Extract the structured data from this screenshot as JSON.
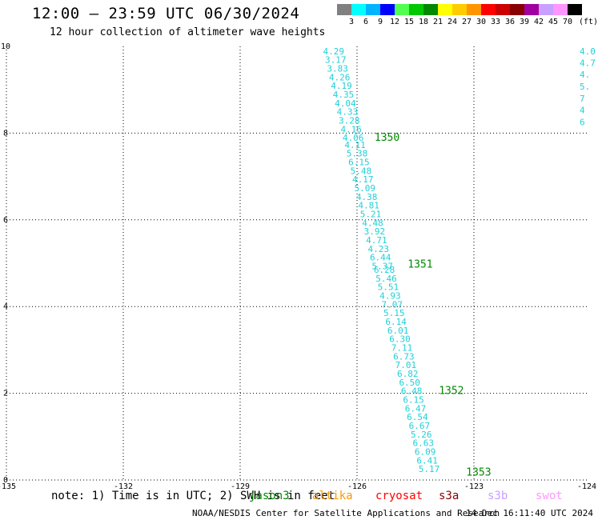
{
  "header": {
    "title": "12:00 – 23:59 UTC 06/30/2024",
    "subtitle": "12 hour collection of altimeter wave heights"
  },
  "colorbar": {
    "unit": "(ft)",
    "boxes": [
      {
        "color": "#808080",
        "label": "3"
      },
      {
        "color": "#00ffff",
        "label": "6"
      },
      {
        "color": "#00b4ff",
        "label": "9"
      },
      {
        "color": "#0000ff",
        "label": "12"
      },
      {
        "color": "#50ff50",
        "label": "15"
      },
      {
        "color": "#00c800",
        "label": "18"
      },
      {
        "color": "#008800",
        "label": "21"
      },
      {
        "color": "#ffff00",
        "label": "24"
      },
      {
        "color": "#ffcc00",
        "label": "27"
      },
      {
        "color": "#ff9600",
        "label": "30"
      },
      {
        "color": "#ff0000",
        "label": "33"
      },
      {
        "color": "#cc0000",
        "label": "36"
      },
      {
        "color": "#880000",
        "label": "39"
      },
      {
        "color": "#a000a0",
        "label": "42"
      },
      {
        "color": "#c8a0ff",
        "label": "45"
      },
      {
        "color": "#ff96ff",
        "label": "70"
      },
      {
        "color": "#000000",
        "label": ""
      }
    ]
  },
  "map": {
    "lon_range": [
      -135,
      -124
    ],
    "lat_range": [
      0,
      10
    ],
    "x_ticks": [
      "-135",
      "-132",
      "-129",
      "-126",
      "-123",
      "-124"
    ],
    "y_ticks": [
      "0",
      "2",
      "4",
      "6",
      "8",
      "10"
    ],
    "track_color": "#20d0d8",
    "orbit_color": "#008800",
    "track": [
      {
        "lon": -126.6,
        "lat": 9.82,
        "v": "4.29"
      },
      {
        "lon": -126.55,
        "lat": 9.62,
        "v": "3.17"
      },
      {
        "lon": -126.5,
        "lat": 9.42,
        "v": "3.83"
      },
      {
        "lon": -126.45,
        "lat": 9.22,
        "v": "4.26"
      },
      {
        "lon": -126.4,
        "lat": 9.02,
        "v": "4.19"
      },
      {
        "lon": -126.35,
        "lat": 8.82,
        "v": "4.35"
      },
      {
        "lon": -126.3,
        "lat": 8.62,
        "v": "4.04"
      },
      {
        "lon": -126.25,
        "lat": 8.42,
        "v": "4.33"
      },
      {
        "lon": -126.2,
        "lat": 8.22,
        "v": "3.28"
      },
      {
        "lon": -126.15,
        "lat": 8.02,
        "v": "4.16"
      },
      {
        "lon": -126.1,
        "lat": 7.82,
        "v": "4.06"
      },
      {
        "lon": -126.05,
        "lat": 7.66,
        "v": "4.11"
      },
      {
        "lon": -126.0,
        "lat": 7.46,
        "v": "5.38"
      },
      {
        "lon": -125.95,
        "lat": 7.26,
        "v": "6.15"
      },
      {
        "lon": -125.9,
        "lat": 7.06,
        "v": "5.48"
      },
      {
        "lon": -125.85,
        "lat": 6.86,
        "v": "4.17"
      },
      {
        "lon": -125.8,
        "lat": 6.66,
        "v": "5.09"
      },
      {
        "lon": -125.75,
        "lat": 6.46,
        "v": "4.38"
      },
      {
        "lon": -125.7,
        "lat": 6.26,
        "v": "4.81"
      },
      {
        "lon": -125.65,
        "lat": 6.06,
        "v": "5.21"
      },
      {
        "lon": -125.6,
        "lat": 5.86,
        "v": "4.48"
      },
      {
        "lon": -125.55,
        "lat": 5.66,
        "v": "3.92"
      },
      {
        "lon": -125.5,
        "lat": 5.46,
        "v": "4.71"
      },
      {
        "lon": -125.45,
        "lat": 5.26,
        "v": "4.23"
      },
      {
        "lon": -125.4,
        "lat": 5.06,
        "v": "6.44"
      },
      {
        "lon": -125.35,
        "lat": 4.86,
        "v": "5.37"
      },
      {
        "lon": -125.3,
        "lat": 4.78,
        "v": "6.28"
      },
      {
        "lon": -125.25,
        "lat": 4.58,
        "v": "5.46"
      },
      {
        "lon": -125.2,
        "lat": 4.38,
        "v": "5.51"
      },
      {
        "lon": -125.15,
        "lat": 4.18,
        "v": "4.93"
      },
      {
        "lon": -125.1,
        "lat": 3.98,
        "v": "7.07"
      },
      {
        "lon": -125.05,
        "lat": 3.78,
        "v": "5.15"
      },
      {
        "lon": -125.0,
        "lat": 3.58,
        "v": "6.14"
      },
      {
        "lon": -124.95,
        "lat": 3.38,
        "v": "6.01"
      },
      {
        "lon": -124.9,
        "lat": 3.18,
        "v": "6.30"
      },
      {
        "lon": -124.85,
        "lat": 2.98,
        "v": "7.11"
      },
      {
        "lon": -124.8,
        "lat": 2.78,
        "v": "6.73"
      },
      {
        "lon": -124.75,
        "lat": 2.58,
        "v": "7.01"
      },
      {
        "lon": -124.7,
        "lat": 2.38,
        "v": "6.82"
      },
      {
        "lon": -124.65,
        "lat": 2.18,
        "v": "6.50"
      },
      {
        "lon": -124.6,
        "lat": 1.98,
        "v": "6.48"
      },
      {
        "lon": -124.55,
        "lat": 1.78,
        "v": "6.15"
      },
      {
        "lon": -124.5,
        "lat": 1.58,
        "v": "6.47"
      },
      {
        "lon": -124.45,
        "lat": 1.38,
        "v": "6.54"
      },
      {
        "lon": -124.4,
        "lat": 1.18,
        "v": "6.67"
      },
      {
        "lon": -124.35,
        "lat": 0.98,
        "v": "5.26"
      },
      {
        "lon": -124.3,
        "lat": 0.78,
        "v": "6.63"
      },
      {
        "lon": -124.25,
        "lat": 0.58,
        "v": "6.09"
      },
      {
        "lon": -124.2,
        "lat": 0.38,
        "v": "6.41"
      },
      {
        "lon": -124.15,
        "lat": 0.18,
        "v": "5.17"
      }
    ],
    "edge_track": [
      {
        "lon": -124.05,
        "lat": 9.82,
        "v": "4.0"
      },
      {
        "lon": -124.05,
        "lat": 9.55,
        "v": "4.7"
      },
      {
        "lon": -124.05,
        "lat": 9.28,
        "v": "4."
      },
      {
        "lon": -124.05,
        "lat": 9.0,
        "v": "5."
      },
      {
        "lon": -124.05,
        "lat": 8.73,
        "v": "7"
      },
      {
        "lon": -124.05,
        "lat": 8.46,
        "v": "4"
      },
      {
        "lon": -124.05,
        "lat": 8.18,
        "v": "6"
      }
    ],
    "orbits": [
      {
        "lon": -125.55,
        "lat": 7.82,
        "label": "1350"
      },
      {
        "lon": -124.7,
        "lat": 4.9,
        "label": "1351"
      },
      {
        "lon": -123.9,
        "lat": 1.98,
        "label": "1352"
      },
      {
        "lon": -123.2,
        "lat": 0.1,
        "label": "1353"
      }
    ]
  },
  "footer": {
    "note": "note: 1) Time is in UTC; 2) SWH is in feet",
    "satellites": [
      {
        "name": "jason3",
        "color": "#008800",
        "x": 311
      },
      {
        "name": "altika",
        "color": "#ff9600",
        "x": 390
      },
      {
        "name": "cryosat",
        "color": "#ff0000",
        "x": 469
      },
      {
        "name": "s3a",
        "color": "#880000",
        "x": 548
      },
      {
        "name": "s3b",
        "color": "#c8a0ff",
        "x": 609
      },
      {
        "name": "swot",
        "color": "#ff96ff",
        "x": 669
      }
    ],
    "credit": "NOAA/NESDIS Center for Satellite Applications and Research",
    "timestamp": "14 Dec 16:11:40 UTC 2024"
  }
}
